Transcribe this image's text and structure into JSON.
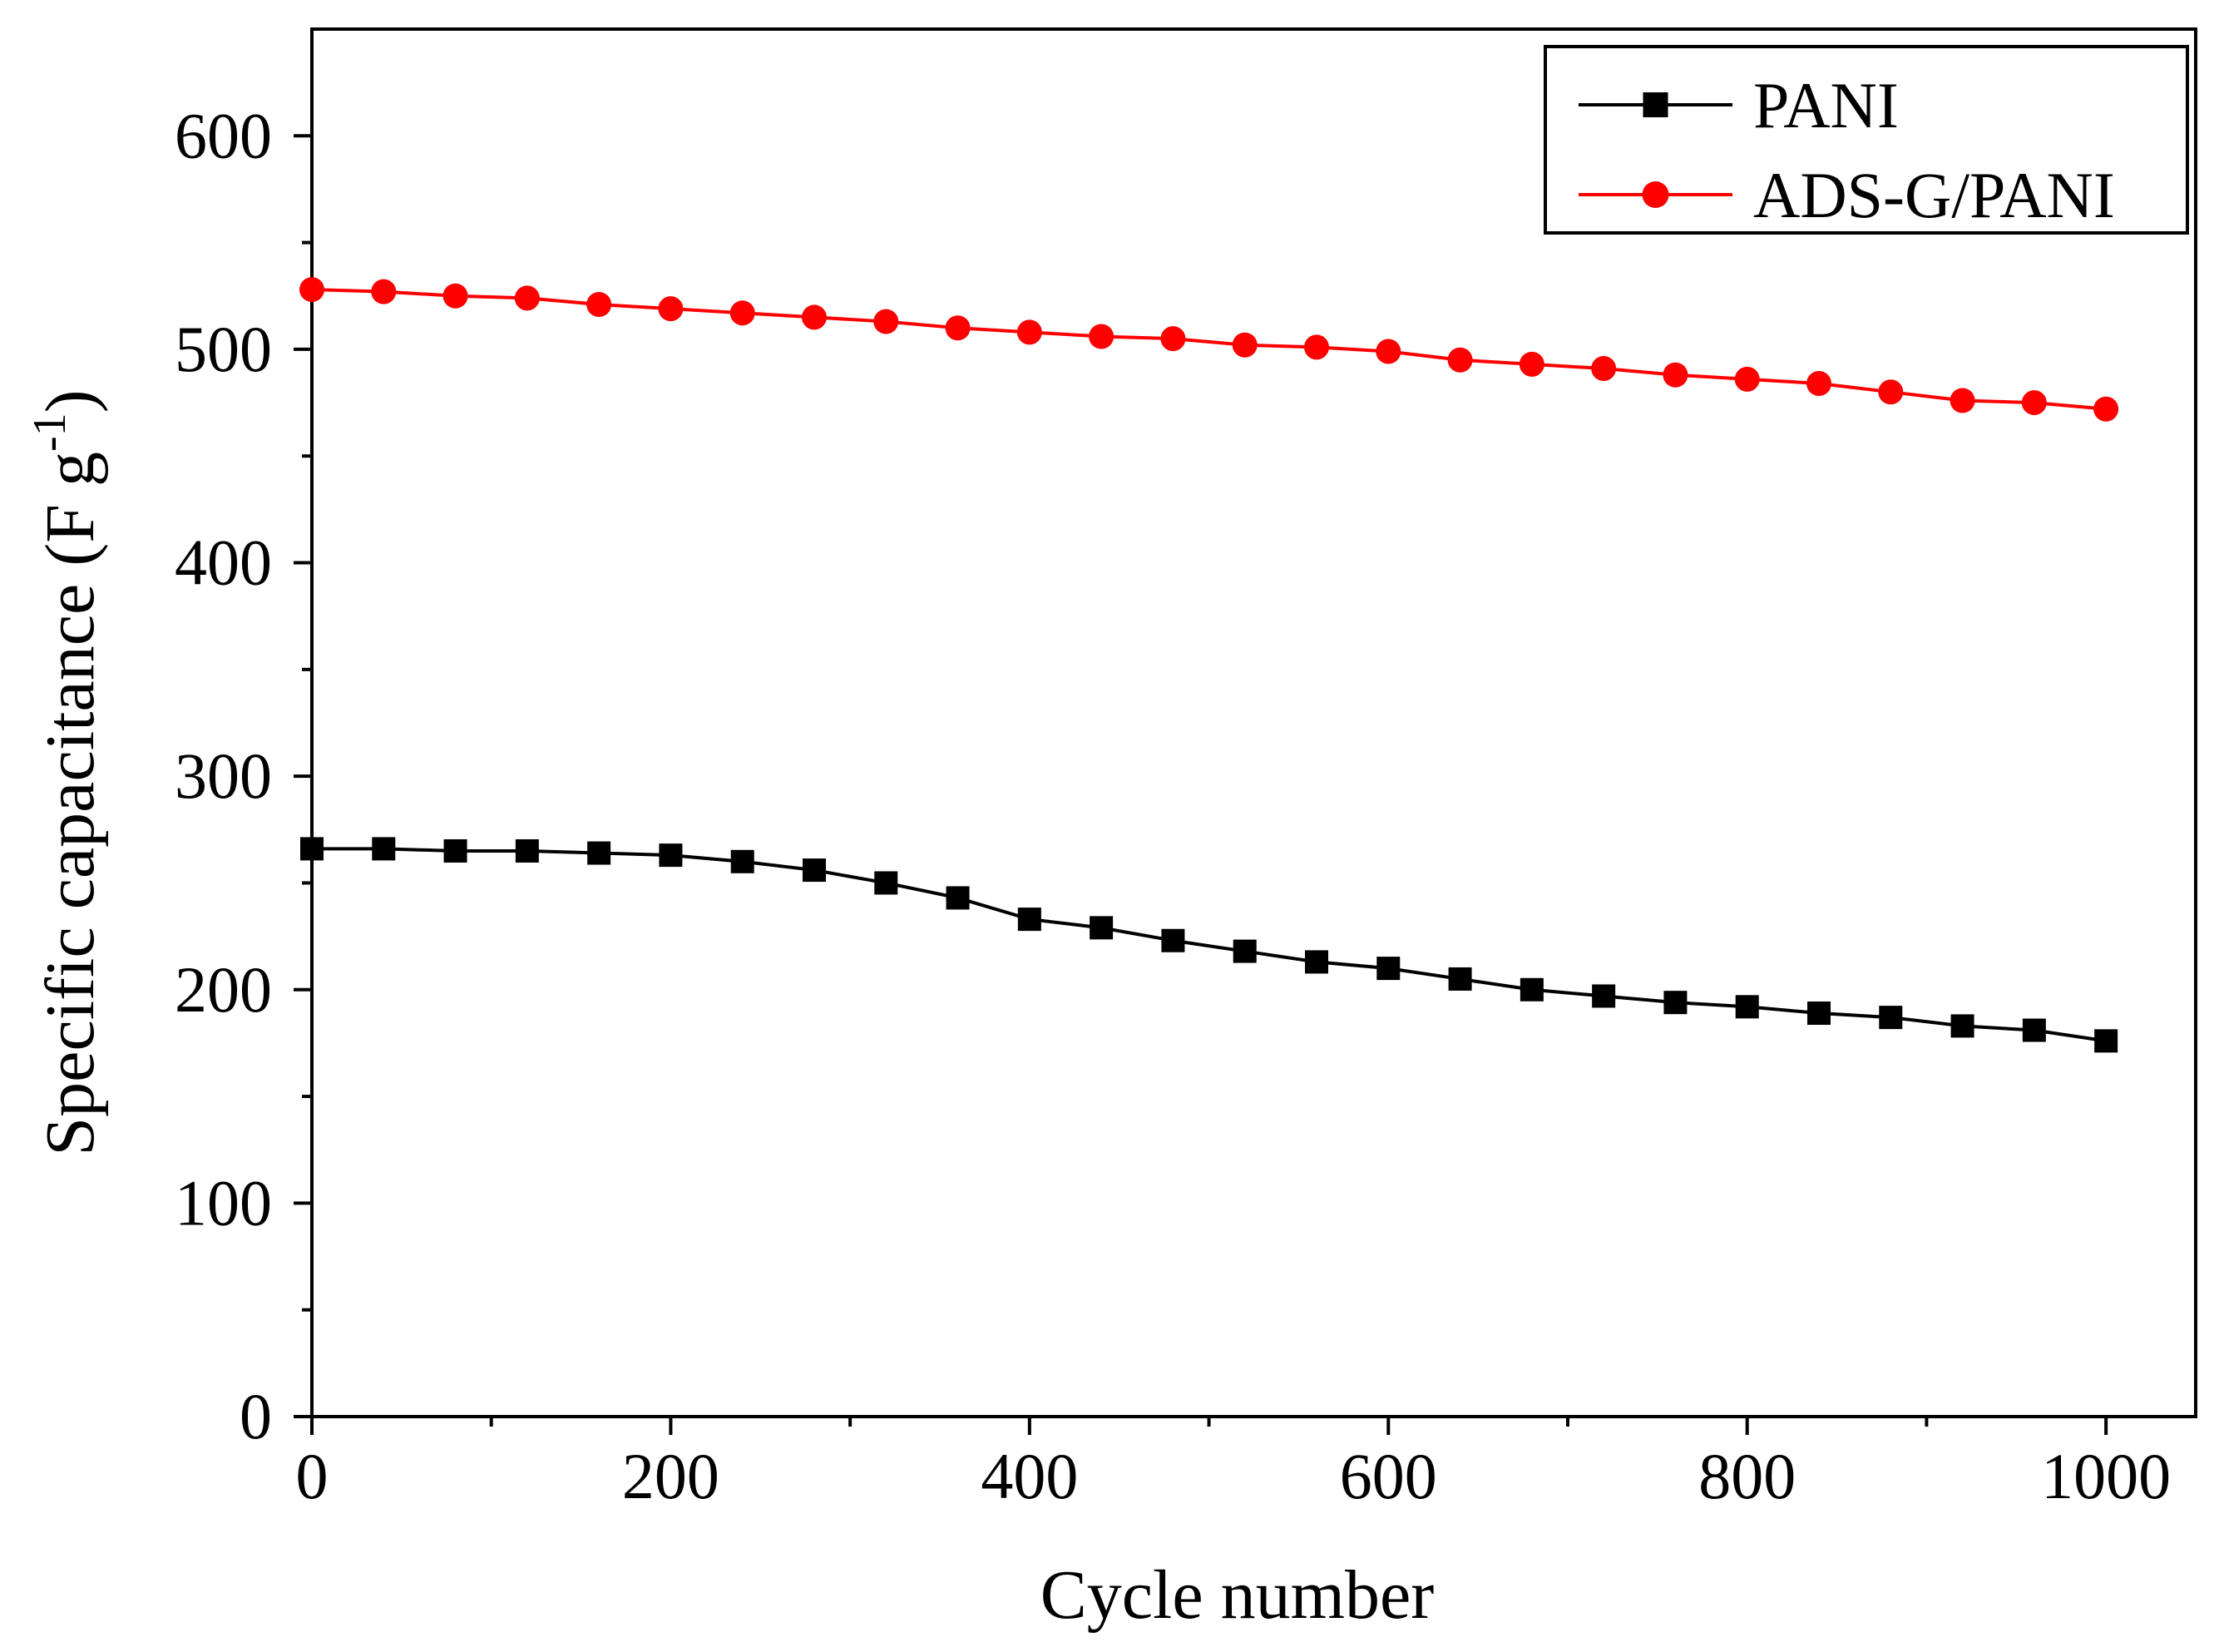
{
  "chart_data": {
    "type": "line",
    "title": "",
    "xlabel": "Cycle number",
    "ylabel": {
      "main": "Specific capacitance (F g",
      "superscript": "-1",
      "close": ")"
    },
    "xlim": [
      0,
      1050
    ],
    "ylim": [
      0,
      650
    ],
    "x_ticks": [
      0,
      200,
      400,
      600,
      800,
      1000
    ],
    "x_tick_labels": [
      "0",
      "200",
      "400",
      "600",
      "800",
      "1000"
    ],
    "x_minor_ticks": [
      100,
      300,
      500,
      700,
      900
    ],
    "y_ticks": [
      0,
      100,
      200,
      300,
      400,
      500,
      600
    ],
    "y_tick_labels": [
      "0",
      "100",
      "200",
      "300",
      "400",
      "500",
      "600"
    ],
    "y_minor_ticks": [
      50,
      150,
      250,
      350,
      450,
      550
    ],
    "grid": false,
    "legend_position": "top-right",
    "x": [
      0,
      40,
      80,
      120,
      160,
      200,
      240,
      280,
      320,
      360,
      400,
      440,
      480,
      520,
      560,
      600,
      640,
      680,
      720,
      760,
      800,
      840,
      880,
      920,
      960,
      1000
    ],
    "series": [
      {
        "name": "PANI",
        "marker": "square",
        "color": "#000000",
        "values": [
          266,
          266,
          265,
          265,
          264,
          263,
          260,
          256,
          250,
          243,
          233,
          229,
          223,
          218,
          213,
          210,
          205,
          200,
          197,
          194,
          192,
          189,
          187,
          183,
          181,
          176
        ]
      },
      {
        "name": "ADS-G/PANI",
        "marker": "circle",
        "color": "#ff0000",
        "values": [
          528,
          527,
          525,
          524,
          521,
          519,
          517,
          515,
          513,
          510,
          508,
          506,
          505,
          502,
          501,
          499,
          495,
          493,
          491,
          488,
          486,
          484,
          480,
          476,
          475,
          472
        ]
      }
    ]
  }
}
